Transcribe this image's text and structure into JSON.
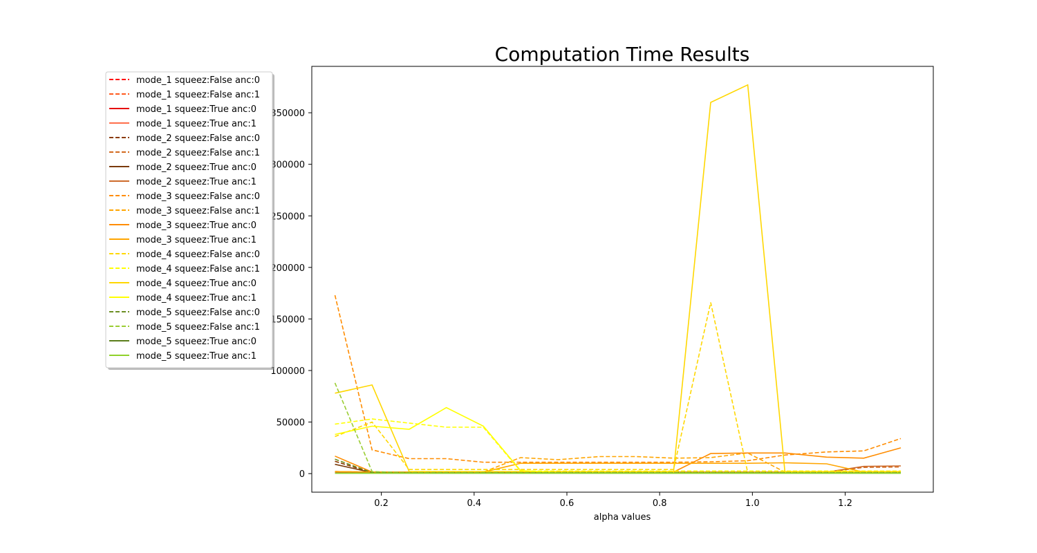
{
  "chart_data": {
    "type": "line",
    "title": "Computation Time Results",
    "xlabel": "alpha values",
    "ylabel": "",
    "xlim": [
      0.05,
      1.39
    ],
    "ylim": [
      -18000,
      395000
    ],
    "x_ticks": [
      0.2,
      0.4,
      0.6,
      0.8,
      1.0,
      1.2
    ],
    "x_tick_labels": [
      "0.2",
      "0.4",
      "0.6",
      "0.8",
      "1.0",
      "1.2"
    ],
    "y_ticks": [
      0,
      50000,
      100000,
      150000,
      200000,
      250000,
      300000,
      350000
    ],
    "y_tick_labels": [
      "0",
      "50000",
      "100000",
      "150000",
      "200000",
      "250000",
      "300000",
      "350000"
    ],
    "grid": false,
    "legend_placement": "upper-left",
    "x": [
      0.1,
      0.18,
      0.26,
      0.34,
      0.42,
      0.5,
      0.58,
      0.67,
      0.75,
      0.83,
      0.91,
      0.99,
      1.07,
      1.16,
      1.24,
      1.32
    ],
    "series": [
      {
        "name": "mode_1 squeez:False anc:0",
        "color": "#ff0000",
        "dash": true,
        "values": [
          1500,
          800,
          800,
          800,
          800,
          800,
          800,
          800,
          800,
          800,
          800,
          800,
          800,
          800,
          800,
          800
        ]
      },
      {
        "name": "mode_1 squeez:False anc:1",
        "color": "#ff5a1e",
        "dash": true,
        "values": [
          1200,
          700,
          700,
          700,
          700,
          700,
          700,
          700,
          700,
          700,
          700,
          700,
          700,
          700,
          700,
          700
        ]
      },
      {
        "name": "mode_1 squeez:True anc:0",
        "color": "#e60000",
        "dash": false,
        "values": [
          1000,
          600,
          600,
          600,
          600,
          600,
          600,
          600,
          600,
          600,
          600,
          600,
          600,
          600,
          600,
          600
        ]
      },
      {
        "name": "mode_1 squeez:True anc:1",
        "color": "#ff6e4b",
        "dash": false,
        "values": [
          900,
          500,
          500,
          500,
          500,
          500,
          500,
          500,
          500,
          500,
          500,
          500,
          500,
          500,
          500,
          500
        ]
      },
      {
        "name": "mode_2 squeez:False anc:0",
        "color": "#8b3a00",
        "dash": true,
        "values": [
          12000,
          1000,
          1000,
          1000,
          1000,
          1000,
          1000,
          1000,
          1000,
          1000,
          1000,
          1000,
          1000,
          1000,
          1000,
          1000
        ]
      },
      {
        "name": "mode_2 squeez:False anc:1",
        "color": "#d2691e",
        "dash": true,
        "values": [
          2000,
          1500,
          1500,
          1500,
          1500,
          1500,
          1500,
          1500,
          1500,
          1500,
          1500,
          1500,
          1500,
          1500,
          6000,
          6500
        ]
      },
      {
        "name": "mode_2 squeez:True anc:0",
        "color": "#7a3a0a",
        "dash": false,
        "values": [
          9000,
          1000,
          1000,
          1000,
          1000,
          1000,
          1000,
          1000,
          1000,
          1000,
          1000,
          1000,
          1000,
          1000,
          1000,
          1000
        ]
      },
      {
        "name": "mode_2 squeez:True anc:1",
        "color": "#cd6a2a",
        "dash": false,
        "values": [
          2000,
          1500,
          1500,
          1500,
          1500,
          1500,
          1500,
          1500,
          1500,
          1500,
          1500,
          1500,
          1500,
          1500,
          7000,
          7500
        ]
      },
      {
        "name": "mode_3 squeez:False anc:0",
        "color": "#ff8c00",
        "dash": true,
        "values": [
          173000,
          23000,
          14500,
          14500,
          11000,
          11000,
          11000,
          11000,
          11000,
          11000,
          11500,
          12500,
          18000,
          21000,
          22000,
          34000
        ]
      },
      {
        "name": "mode_3 squeez:False anc:1",
        "color": "#ffa500",
        "dash": true,
        "values": [
          2000,
          1500,
          1500,
          1500,
          1500,
          15500,
          13500,
          16500,
          16500,
          15000,
          15500,
          20000,
          1500,
          1500,
          1500,
          1500
        ]
      },
      {
        "name": "mode_3 squeez:True anc:0",
        "color": "#ff8c00",
        "dash": false,
        "values": [
          17000,
          1500,
          1500,
          1500,
          1500,
          1500,
          1500,
          1500,
          1500,
          1500,
          19500,
          20000,
          20000,
          16000,
          15000,
          25000
        ]
      },
      {
        "name": "mode_3 squeez:True anc:1",
        "color": "#ffa500",
        "dash": false,
        "values": [
          2000,
          1500,
          1500,
          1500,
          1500,
          10000,
          10000,
          10000,
          10000,
          10000,
          10000,
          10000,
          10500,
          9500,
          1500,
          1500
        ]
      },
      {
        "name": "mode_4 squeez:False anc:0",
        "color": "#ffd700",
        "dash": true,
        "values": [
          36000,
          50000,
          4000,
          4000,
          4000,
          4000,
          4000,
          4000,
          4000,
          4000,
          166000,
          1000,
          1000,
          1000,
          1000,
          1000
        ]
      },
      {
        "name": "mode_4 squeez:False anc:1",
        "color": "#ffff00",
        "dash": true,
        "values": [
          48000,
          53000,
          49000,
          45000,
          45000,
          2500,
          2500,
          2500,
          2500,
          2500,
          2500,
          2500,
          2500,
          2500,
          2500,
          2500
        ]
      },
      {
        "name": "mode_4 squeez:True anc:0",
        "color": "#ffd700",
        "dash": false,
        "values": [
          78000,
          86000,
          2000,
          2000,
          2000,
          2000,
          2000,
          2000,
          2000,
          2000,
          360000,
          377000,
          2000,
          2000,
          2000,
          2000
        ]
      },
      {
        "name": "mode_4 squeez:True anc:1",
        "color": "#ffff00",
        "dash": false,
        "values": [
          38000,
          46000,
          43000,
          64000,
          46000,
          3000,
          1000,
          1000,
          1000,
          1000,
          1000,
          1000,
          1000,
          1000,
          1000,
          1000
        ]
      },
      {
        "name": "mode_5 squeez:False anc:0",
        "color": "#6b8e23",
        "dash": true,
        "values": [
          14000,
          1000,
          1000,
          1000,
          1000,
          1000,
          1000,
          1000,
          1000,
          1000,
          1000,
          1000,
          1000,
          1000,
          1000,
          1000
        ]
      },
      {
        "name": "mode_5 squeez:False anc:1",
        "color": "#9acd32",
        "dash": true,
        "values": [
          88000,
          2000,
          1000,
          1000,
          1000,
          1000,
          1000,
          1000,
          1000,
          1000,
          1000,
          1000,
          1000,
          1000,
          1000,
          1000
        ]
      },
      {
        "name": "mode_5 squeez:True anc:0",
        "color": "#5a7d1a",
        "dash": false,
        "values": [
          500,
          500,
          500,
          500,
          500,
          500,
          500,
          500,
          500,
          500,
          500,
          500,
          500,
          500,
          500,
          500
        ]
      },
      {
        "name": "mode_5 squeez:True anc:1",
        "color": "#8fd12a",
        "dash": false,
        "values": [
          300,
          300,
          300,
          300,
          300,
          300,
          300,
          300,
          300,
          300,
          300,
          300,
          300,
          300,
          300,
          300
        ]
      }
    ]
  }
}
